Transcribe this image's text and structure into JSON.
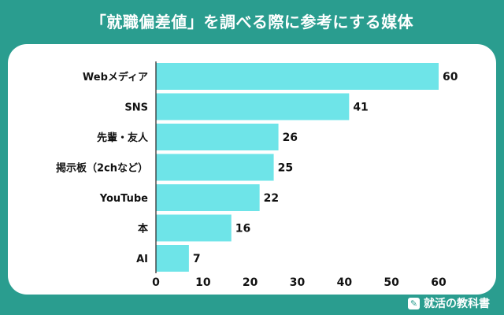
{
  "title": "「就職偏差値」を調べる際に参考にする媒体",
  "brand": {
    "name": "就活の教科書",
    "icon": "book-pen-icon"
  },
  "colors": {
    "background": "#2a9d8f",
    "bar": "#6ee4e8",
    "axis": "#222222"
  },
  "chart_data": {
    "type": "bar",
    "orientation": "horizontal",
    "categories": [
      "Webメディア",
      "SNS",
      "先輩・友人",
      "掲示板（2chなど）",
      "YouTube",
      "本",
      "AI"
    ],
    "values": [
      60,
      41,
      26,
      25,
      22,
      16,
      7
    ],
    "xlim": [
      0,
      60
    ],
    "xticks": [
      0,
      10,
      20,
      30,
      40,
      50,
      60
    ],
    "grid": false,
    "legend": "none"
  }
}
